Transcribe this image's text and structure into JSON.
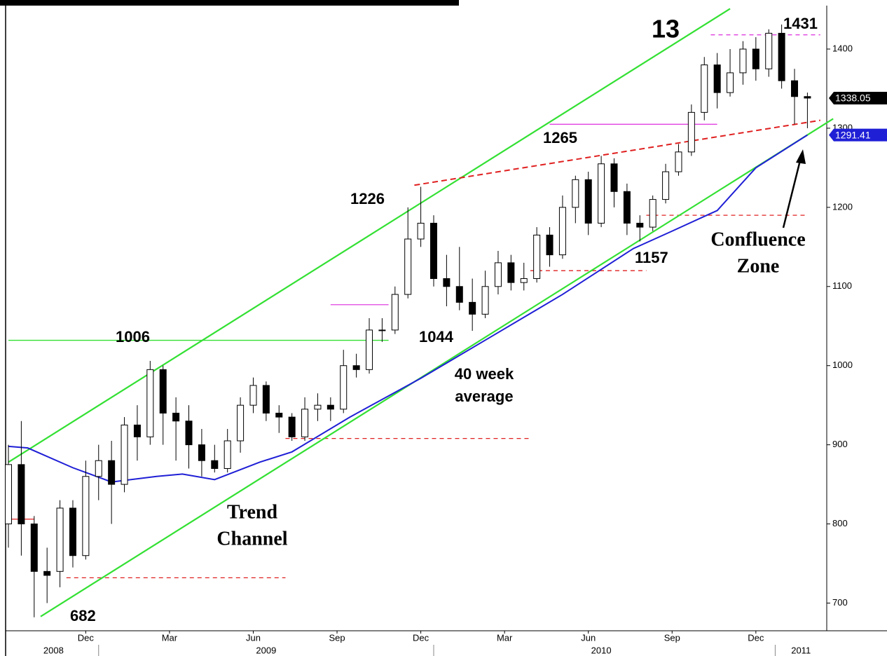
{
  "chart_data": {
    "type": "candlestick",
    "xlim": [
      0,
      127
    ],
    "ylim": [
      665,
      1462
    ],
    "yticks": [
      700,
      800,
      900,
      1000,
      1100,
      1200,
      1300,
      1400
    ],
    "xticks": [
      {
        "value": 12,
        "label": "Dec"
      },
      {
        "value": 25,
        "label": "Mar"
      },
      {
        "value": 38,
        "label": "Jun"
      },
      {
        "value": 51,
        "label": "Sep"
      },
      {
        "value": 64,
        "label": "Dec"
      },
      {
        "value": 77,
        "label": "Mar"
      },
      {
        "value": 90,
        "label": "Jun"
      },
      {
        "value": 103,
        "label": "Sep"
      },
      {
        "value": 116,
        "label": "Dec"
      }
    ],
    "years": [
      {
        "value": 7,
        "label": "2008"
      },
      {
        "value": 40,
        "label": "2009"
      },
      {
        "value": 92,
        "label": "2010"
      },
      {
        "value": 123,
        "label": "2011"
      }
    ],
    "year_breaks": [
      14,
      66,
      119
    ],
    "x": [
      0,
      2,
      4,
      6,
      8,
      10,
      12,
      14,
      16,
      18,
      20,
      22,
      24,
      26,
      28,
      30,
      32,
      34,
      36,
      38,
      40,
      42,
      44,
      46,
      48,
      50,
      52,
      54,
      56,
      58,
      60,
      62,
      64,
      66,
      68,
      70,
      72,
      74,
      76,
      78,
      80,
      82,
      84,
      86,
      88,
      90,
      92,
      94,
      96,
      98,
      100,
      102,
      104,
      106,
      108,
      110,
      112,
      114,
      116,
      118,
      120,
      122,
      124
    ],
    "open": [
      800,
      875,
      800,
      740,
      740,
      820,
      760,
      860,
      880,
      850,
      925,
      910,
      995,
      940,
      930,
      900,
      880,
      870,
      905,
      950,
      975,
      940,
      935,
      910,
      945,
      950,
      945,
      1000,
      995,
      1045,
      1045,
      1090,
      1160,
      1180,
      1110,
      1100,
      1080,
      1065,
      1100,
      1130,
      1105,
      1110,
      1165,
      1140,
      1200,
      1235,
      1180,
      1255,
      1220,
      1180,
      1175,
      1210,
      1245,
      1270,
      1320,
      1380,
      1345,
      1370,
      1400,
      1375,
      1420,
      1360,
      1340
    ],
    "high": [
      900,
      930,
      810,
      770,
      830,
      830,
      880,
      900,
      905,
      935,
      950,
      1006,
      1000,
      960,
      950,
      920,
      900,
      920,
      960,
      985,
      980,
      950,
      940,
      960,
      965,
      960,
      1020,
      1015,
      1060,
      1060,
      1100,
      1200,
      1226,
      1190,
      1140,
      1150,
      1110,
      1120,
      1145,
      1140,
      1130,
      1175,
      1175,
      1215,
      1240,
      1245,
      1265,
      1262,
      1230,
      1190,
      1215,
      1255,
      1280,
      1330,
      1390,
      1395,
      1400,
      1410,
      1415,
      1425,
      1431,
      1375,
      1345
    ],
    "low": [
      770,
      760,
      682,
      700,
      720,
      745,
      755,
      830,
      800,
      840,
      880,
      900,
      900,
      880,
      870,
      860,
      865,
      865,
      890,
      940,
      930,
      915,
      905,
      905,
      930,
      930,
      940,
      985,
      990,
      1030,
      1040,
      1085,
      1150,
      1100,
      1075,
      1070,
      1044,
      1060,
      1090,
      1095,
      1095,
      1105,
      1125,
      1135,
      1180,
      1165,
      1175,
      1200,
      1165,
      1157,
      1170,
      1205,
      1240,
      1265,
      1310,
      1325,
      1340,
      1355,
      1360,
      1365,
      1350,
      1305,
      1300
    ],
    "close": [
      875,
      800,
      740,
      735,
      820,
      760,
      860,
      880,
      850,
      925,
      910,
      995,
      940,
      930,
      900,
      880,
      870,
      905,
      950,
      975,
      940,
      935,
      910,
      945,
      950,
      945,
      1000,
      995,
      1045,
      1045,
      1090,
      1160,
      1180,
      1110,
      1100,
      1080,
      1065,
      1100,
      1130,
      1105,
      1110,
      1165,
      1140,
      1200,
      1235,
      1180,
      1255,
      1220,
      1180,
      1175,
      1210,
      1245,
      1270,
      1320,
      1380,
      1345,
      1370,
      1400,
      1375,
      1420,
      1360,
      1340,
      1338.05
    ],
    "last_close_label": "1338.05",
    "average": {
      "color": "#1f1fd6",
      "x": [
        0,
        3,
        10,
        16,
        23,
        27,
        32,
        39,
        44,
        53,
        64,
        75,
        86,
        97,
        103,
        110,
        116,
        124
      ],
      "values": [
        898,
        896,
        871,
        853,
        860,
        863,
        856,
        878,
        891,
        935,
        984,
        1037,
        1090,
        1148,
        1170,
        1196,
        1250,
        1291.41
      ],
      "value_label": "1291.41"
    },
    "channel": [
      {
        "color": "#33e033",
        "x": [
          0,
          112
        ],
        "values": [
          878,
          1451
        ]
      },
      {
        "color": "#33e033",
        "x": [
          5,
          128
        ],
        "values": [
          683,
          1312
        ]
      }
    ],
    "resistance": {
      "color": "#e02020",
      "x": [
        63,
        126
      ],
      "values": [
        1228,
        1310
      ]
    },
    "levels": [
      {
        "color": "#33e033",
        "style": "solid",
        "x": [
          0,
          59
        ],
        "value": 1032
      },
      {
        "color": "#e040e0",
        "style": "solid",
        "x": [
          50,
          59
        ],
        "value": 1077
      },
      {
        "color": "#e040e0",
        "style": "solid",
        "x": [
          84,
          110
        ],
        "value": 1305
      },
      {
        "color": "#e040e0",
        "style": "dashed",
        "x": [
          109,
          126
        ],
        "value": 1418
      },
      {
        "color": "#e02020",
        "style": "dashed",
        "x": [
          43,
          81
        ],
        "value": 908
      },
      {
        "color": "#e02020",
        "style": "dashed",
        "x": [
          9,
          43
        ],
        "value": 732
      },
      {
        "color": "#e02020",
        "style": "dashed",
        "x": [
          81,
          99
        ],
        "value": 1120
      },
      {
        "color": "#e02020",
        "style": "dashed",
        "x": [
          99,
          124
        ],
        "value": 1190
      },
      {
        "color": "#e02020",
        "style": "solid",
        "x": [
          0,
          4
        ],
        "value": 806
      }
    ],
    "annotations": [
      "13",
      "1431",
      "1265",
      "1226",
      "1006",
      "1044",
      "1157",
      "682",
      "40 week",
      "average",
      "Trend",
      "Channel",
      "Confluence",
      "Zone"
    ]
  }
}
